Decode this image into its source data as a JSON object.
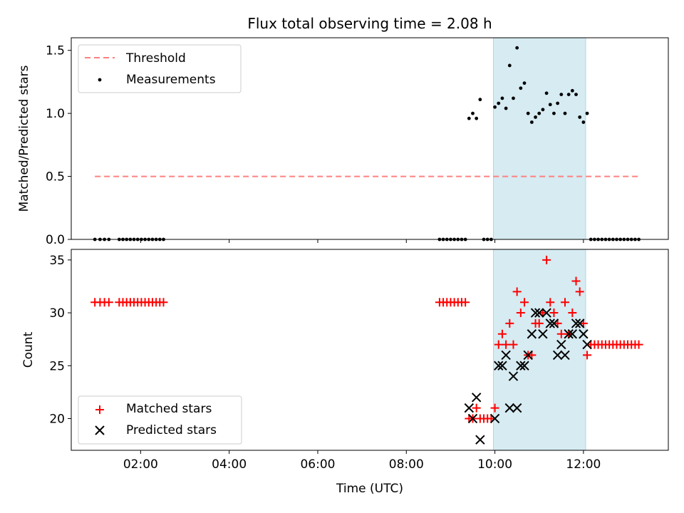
{
  "chart_data": [
    {
      "type": "scatter",
      "title": "Flux total observing time = 2.08 h",
      "xlabel": "",
      "ylabel": "Matched/Predicted stars",
      "xlim": [
        "00:26",
        "13:55"
      ],
      "ylim": [
        0,
        1.6
      ],
      "yticks": [
        "0.0",
        "0.5",
        "1.0",
        "1.5"
      ],
      "shaded_interval": [
        "09:58",
        "12:03"
      ],
      "legend_placement": "top-left",
      "series": [
        {
          "name": "Threshold",
          "style": "dashed-line",
          "color": "#ff8080",
          "x": [
            "00:58",
            "13:15"
          ],
          "y": [
            0.5,
            0.5
          ]
        },
        {
          "name": "Measurements",
          "style": "dot",
          "color": "#000000",
          "x": [
            "00:58",
            "01:05",
            "01:11",
            "01:17",
            "01:31",
            "01:36",
            "01:41",
            "01:46",
            "01:51",
            "01:56",
            "02:01",
            "02:06",
            "02:11",
            "02:16",
            "02:21",
            "02:26",
            "02:31",
            "08:45",
            "08:50",
            "08:55",
            "09:00",
            "09:05",
            "09:10",
            "09:15",
            "09:20",
            "09:25",
            "09:30",
            "09:35",
            "09:40",
            "09:45",
            "09:50",
            "09:55",
            "10:00",
            "10:05",
            "10:10",
            "10:15",
            "10:20",
            "10:25",
            "10:30",
            "10:35",
            "10:40",
            "10:45",
            "10:50",
            "10:55",
            "11:00",
            "11:05",
            "11:10",
            "11:15",
            "11:20",
            "11:25",
            "11:30",
            "11:35",
            "11:40",
            "11:45",
            "11:50",
            "11:55",
            "12:00",
            "12:05",
            "12:10",
            "12:15",
            "12:20",
            "12:25",
            "12:30",
            "12:35",
            "12:40",
            "12:45",
            "12:50",
            "12:55",
            "13:00",
            "13:05",
            "13:10",
            "13:15"
          ],
          "y": [
            0,
            0,
            0,
            0,
            0,
            0,
            0,
            0,
            0,
            0,
            0,
            0,
            0,
            0,
            0,
            0,
            0,
            0,
            0,
            0,
            0,
            0,
            0,
            0,
            0,
            0.96,
            1.0,
            0.96,
            1.11,
            0,
            0,
            0,
            1.05,
            1.08,
            1.12,
            1.04,
            1.38,
            1.12,
            1.52,
            1.2,
            1.24,
            1.0,
            0.93,
            0.97,
            1.0,
            1.03,
            1.16,
            1.07,
            1.0,
            1.08,
            1.15,
            1.0,
            1.15,
            1.18,
            1.15,
            0.97,
            0.93,
            1.0,
            0,
            0,
            0,
            0,
            0,
            0,
            0,
            0,
            0,
            0,
            0,
            0,
            0,
            0
          ]
        }
      ]
    },
    {
      "type": "scatter",
      "xlabel": "Time (UTC)",
      "ylabel": "Count",
      "xlim": [
        "00:26",
        "13:55"
      ],
      "ylim": [
        17,
        36
      ],
      "xticks": [
        "02:00",
        "04:00",
        "06:00",
        "08:00",
        "10:00",
        "12:00"
      ],
      "yticks": [
        "20",
        "25",
        "30",
        "35"
      ],
      "shaded_interval": [
        "09:58",
        "12:03"
      ],
      "legend_placement": "bottom-left",
      "series": [
        {
          "name": "Matched stars",
          "marker": "plus",
          "color": "#ff0000",
          "x": [
            "00:58",
            "01:05",
            "01:11",
            "01:17",
            "01:31",
            "01:36",
            "01:41",
            "01:46",
            "01:51",
            "01:56",
            "02:01",
            "02:06",
            "02:11",
            "02:16",
            "02:21",
            "02:26",
            "02:31",
            "08:45",
            "08:50",
            "08:55",
            "09:00",
            "09:05",
            "09:10",
            "09:15",
            "09:20",
            "09:25",
            "09:30",
            "09:35",
            "09:40",
            "09:45",
            "09:50",
            "09:55",
            "10:00",
            "10:05",
            "10:10",
            "10:15",
            "10:20",
            "10:25",
            "10:30",
            "10:35",
            "10:40",
            "10:45",
            "10:50",
            "10:55",
            "11:00",
            "11:05",
            "11:10",
            "11:15",
            "11:20",
            "11:25",
            "11:30",
            "11:35",
            "11:40",
            "11:45",
            "11:50",
            "11:55",
            "12:00",
            "12:05",
            "12:10",
            "12:15",
            "12:20",
            "12:25",
            "12:30",
            "12:35",
            "12:40",
            "12:45",
            "12:50",
            "12:55",
            "13:00",
            "13:05",
            "13:10",
            "13:15"
          ],
          "y": [
            31,
            31,
            31,
            31,
            31,
            31,
            31,
            31,
            31,
            31,
            31,
            31,
            31,
            31,
            31,
            31,
            31,
            31,
            31,
            31,
            31,
            31,
            31,
            31,
            31,
            20,
            20,
            21,
            20,
            20,
            20,
            20,
            21,
            27,
            28,
            27,
            29,
            27,
            32,
            30,
            31,
            26,
            26,
            29,
            29,
            30,
            35,
            31,
            30,
            29,
            28,
            31,
            28,
            30,
            33,
            32,
            29,
            26,
            27,
            27,
            27,
            27,
            27,
            27,
            27,
            27,
            27,
            27,
            27,
            27,
            27,
            27
          ]
        },
        {
          "name": "Predicted stars",
          "marker": "x",
          "color": "#000000",
          "x": [
            "09:25",
            "09:30",
            "09:35",
            "09:40",
            "10:00",
            "10:05",
            "10:10",
            "10:15",
            "10:20",
            "10:25",
            "10:30",
            "10:35",
            "10:40",
            "10:45",
            "10:50",
            "10:55",
            "11:00",
            "11:05",
            "11:10",
            "11:15",
            "11:20",
            "11:25",
            "11:30",
            "11:35",
            "11:40",
            "11:45",
            "11:50",
            "11:55",
            "12:00",
            "12:05"
          ],
          "y": [
            21,
            20,
            22,
            18,
            20,
            25,
            25,
            26,
            21,
            24,
            21,
            25,
            25,
            26,
            28,
            30,
            30,
            28,
            30,
            29,
            29,
            26,
            27,
            26,
            28,
            28,
            29,
            29,
            28,
            27
          ]
        }
      ]
    }
  ]
}
